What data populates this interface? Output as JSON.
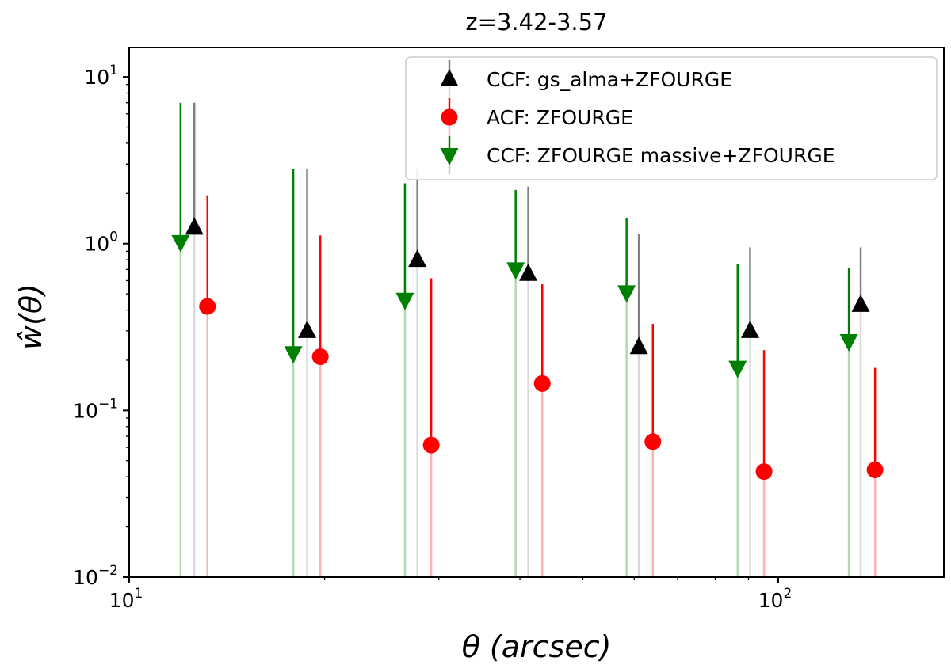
{
  "chart_data": {
    "type": "scatter",
    "title": "z=3.42-3.57",
    "xlabel": "θ (arcsec)",
    "ylabel": "ŵ(θ)",
    "x_scale": "log",
    "y_scale": "log",
    "xlim": [
      10,
      180
    ],
    "ylim": [
      0.01,
      15
    ],
    "grid": false,
    "legend_position": "top-right",
    "x_ticks": [
      {
        "value": 10,
        "base": "10",
        "exp": "1"
      },
      {
        "value": 100,
        "base": "10",
        "exp": "2"
      }
    ],
    "y_ticks": [
      {
        "value": 10,
        "base": "10",
        "exp": "1"
      },
      {
        "value": 1,
        "base": "10",
        "exp": "0"
      },
      {
        "value": 0.1,
        "base": "10",
        "exp": "−1"
      },
      {
        "value": 0.01,
        "base": "10",
        "exp": "−2"
      }
    ],
    "series": [
      {
        "name": "CCF: gs_alma+ZFOURGE",
        "marker": "triangle-up",
        "color": "#000000",
        "errcolor": "#808080",
        "points": [
          {
            "x": 12.6,
            "y": 1.25,
            "y_err_upper": 7.0,
            "y_err_lower": 0.01
          },
          {
            "x": 18.8,
            "y": 0.3,
            "y_err_upper": 2.8,
            "y_err_lower": 0.01
          },
          {
            "x": 27.8,
            "y": 0.8,
            "y_err_upper": 2.8,
            "y_err_lower": 0.01
          },
          {
            "x": 41.2,
            "y": 0.66,
            "y_err_upper": 2.2,
            "y_err_lower": 0.01
          },
          {
            "x": 61.0,
            "y": 0.24,
            "y_err_upper": 1.15,
            "y_err_lower": 0.01
          },
          {
            "x": 90.5,
            "y": 0.3,
            "y_err_upper": 0.95,
            "y_err_lower": 0.01
          },
          {
            "x": 134,
            "y": 0.43,
            "y_err_upper": 0.95,
            "y_err_lower": 0.01
          }
        ]
      },
      {
        "name": "ACF: ZFOURGE",
        "marker": "circle",
        "color": "#ff0000",
        "errcolor": "#ff0000",
        "points": [
          {
            "x": 13.2,
            "y": 0.42,
            "y_err_upper": 1.95,
            "y_err_lower": 0.01
          },
          {
            "x": 19.7,
            "y": 0.21,
            "y_err_upper": 1.12,
            "y_err_lower": 0.01
          },
          {
            "x": 29.2,
            "y": 0.062,
            "y_err_upper": 0.62,
            "y_err_lower": 0.01
          },
          {
            "x": 43.3,
            "y": 0.145,
            "y_err_upper": 0.57,
            "y_err_lower": 0.01
          },
          {
            "x": 64.1,
            "y": 0.065,
            "y_err_upper": 0.33,
            "y_err_lower": 0.01
          },
          {
            "x": 95.1,
            "y": 0.043,
            "y_err_upper": 0.23,
            "y_err_lower": 0.01
          },
          {
            "x": 141,
            "y": 0.044,
            "y_err_upper": 0.18,
            "y_err_lower": 0.01
          }
        ]
      },
      {
        "name": "CCF: ZFOURGE massive+ZFOURGE",
        "marker": "triangle-down",
        "color": "#008000",
        "errcolor": "#008000",
        "points": [
          {
            "x": 12.0,
            "y": 1.02,
            "y_err_upper": 7.0,
            "y_err_lower": 0.01
          },
          {
            "x": 17.9,
            "y": 0.22,
            "y_err_upper": 2.8,
            "y_err_lower": 0.01
          },
          {
            "x": 26.6,
            "y": 0.46,
            "y_err_upper": 2.3,
            "y_err_lower": 0.01
          },
          {
            "x": 39.4,
            "y": 0.7,
            "y_err_upper": 2.1,
            "y_err_lower": 0.01
          },
          {
            "x": 58.4,
            "y": 0.51,
            "y_err_upper": 1.42,
            "y_err_lower": 0.01
          },
          {
            "x": 86.6,
            "y": 0.18,
            "y_err_upper": 0.75,
            "y_err_lower": 0.01
          },
          {
            "x": 128.5,
            "y": 0.26,
            "y_err_upper": 0.71,
            "y_err_lower": 0.01
          }
        ]
      }
    ]
  }
}
